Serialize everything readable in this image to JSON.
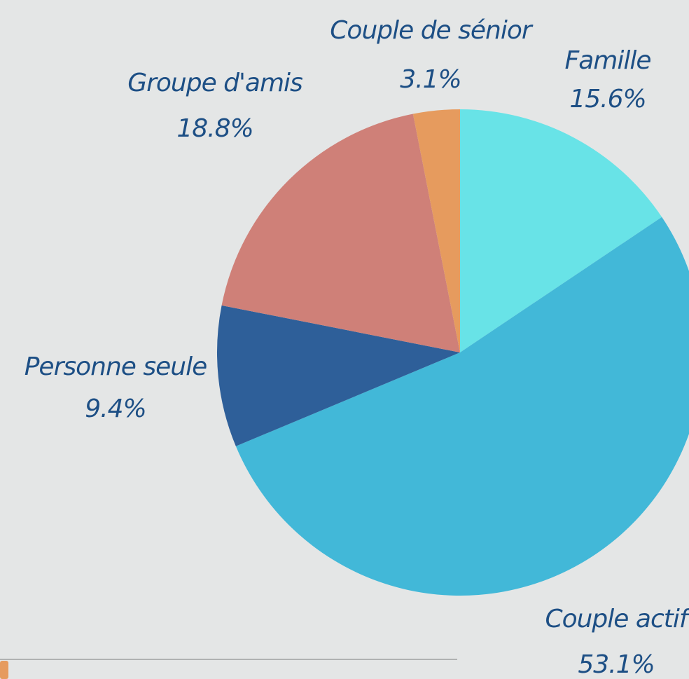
{
  "chart_data": {
    "type": "pie",
    "categories": [
      "Famille",
      "Couple actif",
      "Personne seule",
      "Groupe d'amis",
      "Couple de sénior"
    ],
    "values": [
      15.6,
      53.1,
      9.4,
      18.8,
      3.1
    ],
    "value_labels": [
      "15.6%",
      "53.1%",
      "9.4%",
      "18.8%",
      "3.1%"
    ],
    "colors": [
      "#68e3e7",
      "#42b8d8",
      "#2e5f99",
      "#cf8078",
      "#e69b5e"
    ]
  }
}
